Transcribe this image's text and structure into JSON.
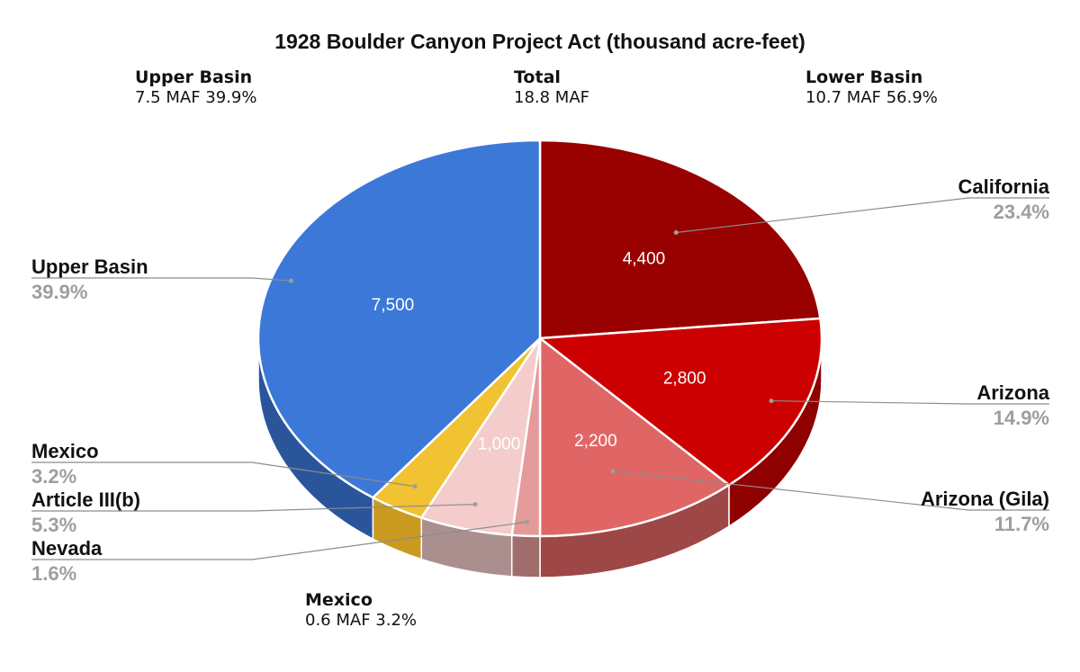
{
  "chart_data": {
    "type": "pie",
    "title": "1928 Boulder Canyon Project Act (thousand acre-feet)",
    "slices": [
      {
        "name": "California",
        "value": 4400,
        "value_label": "4,400",
        "percent_label": "23.4%",
        "color": "#990000",
        "side": "#7a0000"
      },
      {
        "name": "Arizona",
        "value": 2800,
        "value_label": "2,800",
        "percent_label": "14.9%",
        "color": "#cc0000",
        "side": "#8f0000"
      },
      {
        "name": "Arizona (Gila)",
        "value": 2200,
        "value_label": "2,200",
        "percent_label": "11.7%",
        "color": "#e06666",
        "side": "#9e4747"
      },
      {
        "name": "Nevada",
        "value": 300,
        "value_label": "",
        "percent_label": "1.6%",
        "color": "#e59a9a",
        "side": "#a16c6c"
      },
      {
        "name": "Article III(b)",
        "value": 1000,
        "value_label": "1,000",
        "percent_label": "5.3%",
        "color": "#f4cccc",
        "side": "#ab8f8f"
      },
      {
        "name": "Mexico",
        "value": 600,
        "value_label": "",
        "percent_label": "3.2%",
        "color": "#f1c232",
        "side": "#c99a1f"
      },
      {
        "name": "Upper Basin",
        "value": 7500,
        "value_label": "7,500",
        "percent_label": "39.9%",
        "color": "#3c78d8",
        "side": "#2a559b"
      }
    ]
  },
  "summary": {
    "upper": {
      "heading": "Upper Basin",
      "value": "7.5 MAF  39.9%"
    },
    "total": {
      "heading": "Total",
      "value": "18.8 MAF"
    },
    "lower": {
      "heading": "Lower Basin",
      "value": "10.7 MAF 56.9%"
    },
    "mexico": {
      "heading": "Mexico",
      "value": "0.6 MAF  3.2%"
    }
  }
}
